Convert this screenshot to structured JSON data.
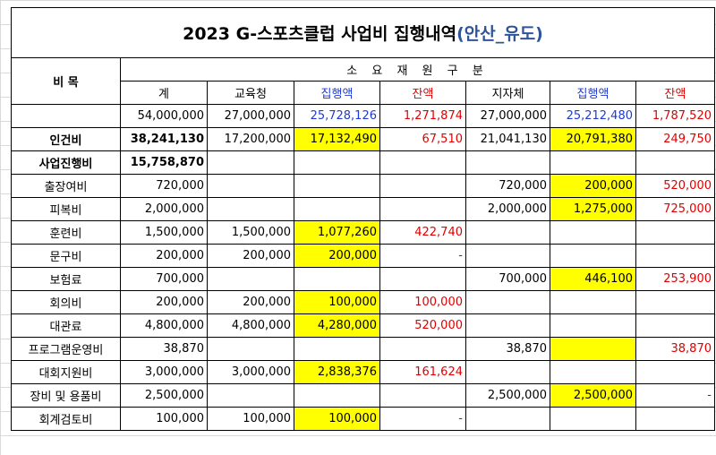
{
  "title": "2023 G-스포츠클럽 사업비 집행내역",
  "title_sub": "(안산_유도)",
  "header": {
    "category": "비 목",
    "source_group": "소 요 재 원 구 분",
    "cols": [
      "계",
      "교육청",
      "집행액",
      "잔액",
      "지자체",
      "집행액",
      "잔액"
    ]
  },
  "totals_row": [
    "54,000,000",
    "27,000,000",
    "25,728,126",
    "1,271,874",
    "27,000,000",
    "25,212,480",
    "1,787,520"
  ],
  "rows": [
    {
      "name": "인건비",
      "bold": true,
      "cells": [
        "38,241,130",
        "17,200,000",
        "17,132,490",
        "67,510",
        "21,041,130",
        "20,791,380",
        "249,750"
      ]
    },
    {
      "name": "사업진행비",
      "bold": true,
      "cells": [
        "15,758,870",
        "",
        "",
        "",
        "",
        "",
        ""
      ]
    },
    {
      "name": "출장여비",
      "cells": [
        "720,000",
        "",
        "",
        "",
        "720,000",
        "200,000",
        "520,000"
      ]
    },
    {
      "name": "피복비",
      "cells": [
        "2,000,000",
        "",
        "",
        "",
        "2,000,000",
        "1,275,000",
        "725,000"
      ]
    },
    {
      "name": "훈련비",
      "cells": [
        "1,500,000",
        "1,500,000",
        "1,077,260",
        "422,740",
        "",
        "",
        ""
      ]
    },
    {
      "name": "문구비",
      "cells": [
        "200,000",
        "200,000",
        "200,000",
        "-",
        "",
        "",
        ""
      ]
    },
    {
      "name": "보험료",
      "cells": [
        "700,000",
        "",
        "",
        "",
        "700,000",
        "446,100",
        "253,900"
      ]
    },
    {
      "name": "회의비",
      "cells": [
        "200,000",
        "200,000",
        "100,000",
        "100,000",
        "",
        "",
        ""
      ]
    },
    {
      "name": "대관료",
      "cells": [
        "4,800,000",
        "4,800,000",
        "4,280,000",
        "520,000",
        "",
        "",
        ""
      ]
    },
    {
      "name": "프로그램운영비",
      "cells": [
        "38,870",
        "",
        "",
        "",
        "38,870",
        "",
        "38,870"
      ]
    },
    {
      "name": "대회지원비",
      "cells": [
        "3,000,000",
        "3,000,000",
        "2,838,376",
        "161,624",
        "",
        "",
        ""
      ]
    },
    {
      "name": "장비 및 용품비",
      "cells": [
        "2,500,000",
        "",
        "",
        "",
        "2,500,000",
        "2,500,000",
        "-"
      ]
    },
    {
      "name": "회계검토비",
      "cells": [
        "100,000",
        "100,000",
        "100,000",
        "-",
        "",
        "",
        ""
      ]
    }
  ],
  "colors": {
    "highlight": "#ffff00",
    "executed_text": "#1f3bd1",
    "balance_text": "#e00000",
    "title_sub": "#2f5597"
  }
}
